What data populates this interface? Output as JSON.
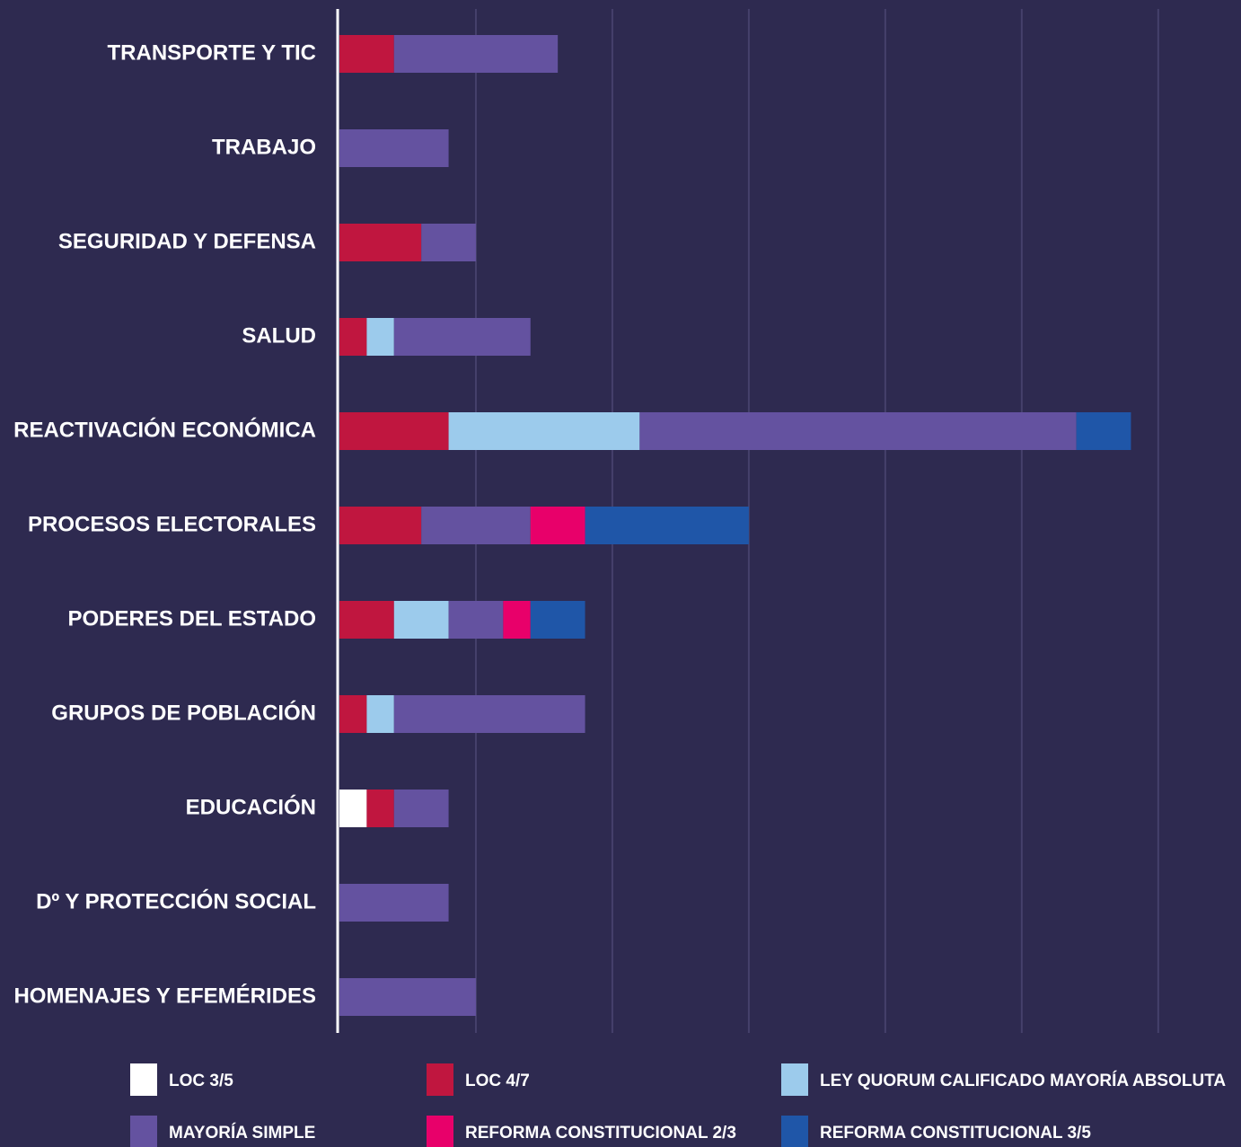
{
  "chart_data": {
    "type": "stacked_bar_horizontal",
    "categories": [
      "TRANSPORTE Y TIC",
      "TRABAJO",
      "SEGURIDAD Y DEFENSA",
      "SALUD",
      "REACTIVACIÓN ECONÓMICA",
      "PROCESOS ELECTORALES",
      "PODERES DEL ESTADO",
      "GRUPOS DE POBLACIÓN",
      "EDUCACIÓN",
      "Dº Y PROTECCIÓN SOCIAL",
      "HOMENAJES Y EFEMÉRIDES"
    ],
    "series": [
      {
        "name": "LOC 3/5",
        "color": "#ffffff",
        "values": [
          0,
          0,
          0,
          0,
          0,
          0,
          0,
          0,
          1,
          0,
          0
        ]
      },
      {
        "name": "LOC 4/7",
        "color": "#c0163f",
        "values": [
          2,
          0,
          3,
          1,
          4,
          3,
          2,
          1,
          1,
          0,
          0
        ]
      },
      {
        "name": "LEY QUORUM CALIFICADO MAYORÍA ABSOLUTA",
        "color": "#9ccbec",
        "values": [
          0,
          0,
          0,
          1,
          7,
          0,
          2,
          1,
          0,
          0,
          0
        ]
      },
      {
        "name": "MAYORÍA SIMPLE",
        "color": "#6452a0",
        "values": [
          6,
          4,
          2,
          5,
          16,
          4,
          2,
          7,
          2,
          4,
          5
        ]
      },
      {
        "name": "REFORMA CONSTITUCIONAL 2/3",
        "color": "#e8006a",
        "values": [
          0,
          0,
          0,
          0,
          0,
          2,
          1,
          0,
          0,
          0,
          0
        ]
      },
      {
        "name": "REFORMA CONSTITUCIONAL 3/5",
        "color": "#1f56a8",
        "values": [
          0,
          0,
          0,
          0,
          2,
          6,
          2,
          0,
          0,
          0,
          0
        ]
      }
    ],
    "xlim": [
      0,
      33
    ],
    "xticks": [
      5,
      10,
      15,
      20,
      25,
      30
    ],
    "grid": true
  }
}
